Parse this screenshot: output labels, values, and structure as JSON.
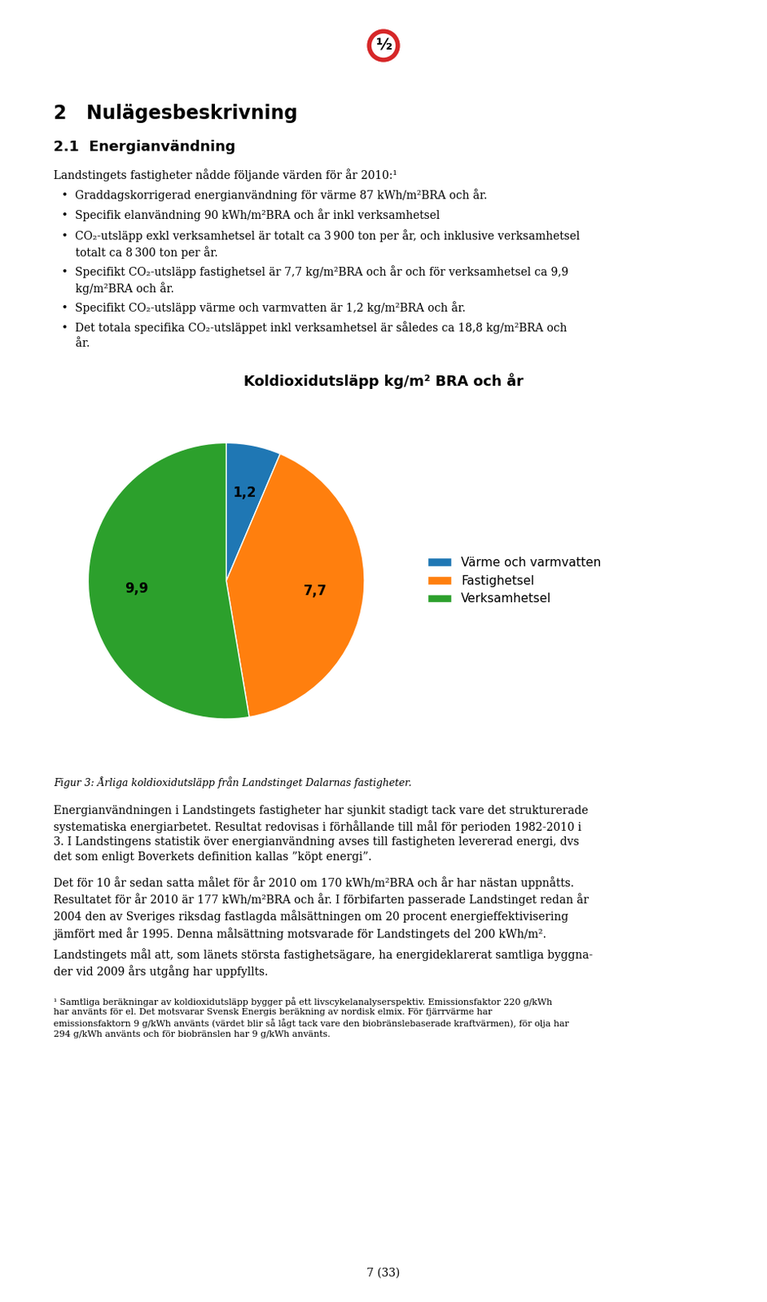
{
  "chart_data": {
    "type": "pie",
    "title": "Koldioxidutsläpp kg/m² BRA och år",
    "categories": [
      "Värme och varmvatten",
      "Fastighetsel",
      "Verksamhetsel"
    ],
    "values": [
      1.2,
      7.7,
      9.9
    ],
    "value_labels": [
      "1,2",
      "7,7",
      "9,9"
    ],
    "data_labels": true,
    "legend": "center left",
    "annotations": [
      "½",
      "2   Nulägesbeskrivning",
      "2.1  Energianvändning",
      "Landstingets fastigheter nådde följande värden för år 2010:¹",
      "•  Graddagskorrigerad energianvändning för värme 87 kWh/m²BRA och år.",
      "•  Specifik elanvändning 90 kWh/m²BRA och år inkl verksamhetsel",
      "•  CO₂-utsläpp exkl verksamhetsel är totalt ca 3 900 ton per år, och inklusive verksamhetsel\n    totalt ca 8 300 ton per år.",
      "•  Specifikt CO₂-utsläpp fastighetsel är 7,7 kg/m²BRA och år och för verksamhetsel ca 9,9\n    kg/m²BRA och år.",
      "•  Specifikt CO₂-utsläpp värme och varmvatten är 1,2 kg/m²BRA och år.",
      "•  Det totala specifika CO₂-utsläppet inkl verksamhetsel är således ca 18,8 kg/m²BRA och\n    år.",
      "Figur 3: Årliga koldioxidutsläpp från Landstinget Dalarnas fastigheter.",
      "Energianvändningen i Landstingets fastigheter har sjunkit stadigt tack vare det strukturerade\nsystematiska energiarbetet. Resultat redovisas i förhållande till mål för perioden 1982-2010 i\n3. I Landstingens statistik över energianvändning avses till fastigheten levererad energi, dvs\ndet som enligt Boverkets definition kallas ”köpt energi”.",
      "Det för 10 år sedan satta målet för år 2010 om 170 kWh/m²BRA och år har nästan uppnåtts.\nResultatet för år 2010 är 177 kWh/m²BRA och år. I förbifarten passerade Landstinget redan år\n2004 den av Sveriges riksdag fastlagda målsättningen om 20 procent energieffektivisering\njämfört med år 1995. Denna målsättning motsvarade för Landstingets del 200 kWh/m².",
      "Landstingets mål att, som länets största fastighetsägare, ha energideklarerat samtliga byggna-\nder vid 2009 års utgång har uppfyllts.",
      "¹ Samtliga beräkningar av koldioxidutsläpp bygger på ett livscykelanalyserspektiv. Emissionsfaktor 220 g/kWh\nhar använts för el. Det motsvarar Svensk Energis beräkning av nordisk elmix. För fjärrvärme har\nemissionsfaktorn 9 g/kWh använts (värdet blir så lågt tack vare den biobränslebaserade kraftvärmen), för olja har\n294 g/kWh använts och för biobränslen har 9 g/kWh använts.",
      "7 (33)"
    ]
  }
}
